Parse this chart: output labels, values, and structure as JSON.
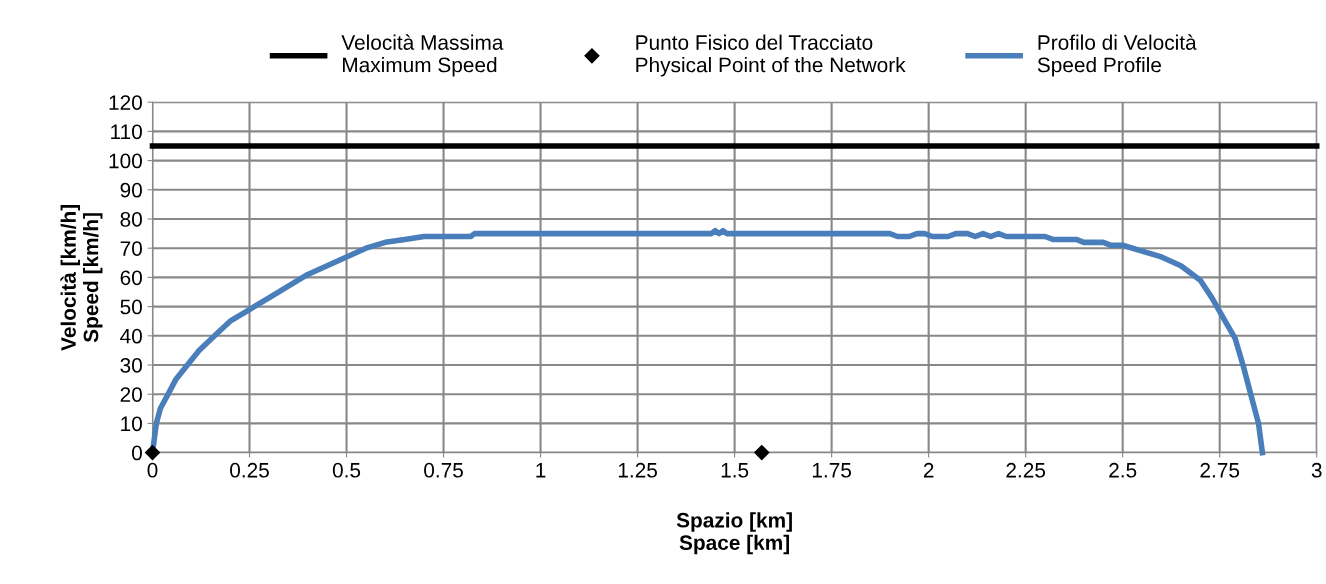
{
  "chart_data": {
    "type": "line",
    "xlabel": "Spazio [km]\nSpace [km]",
    "ylabel": "Velocità [km/h]\nSpeed [km/h]",
    "xlim": [
      0,
      3
    ],
    "xticks": [
      0,
      0.25,
      0.5,
      0.75,
      1,
      1.25,
      1.5,
      1.75,
      2,
      2.25,
      2.5,
      2.75,
      3
    ],
    "ylim": [
      0,
      120
    ],
    "yticks": [
      0,
      10,
      20,
      30,
      40,
      50,
      60,
      70,
      80,
      90,
      100,
      110,
      120
    ],
    "grid": true,
    "legend": "top",
    "series": [
      {
        "name": "Velocità Massima\nMaximum Speed",
        "color": "#000000",
        "marker": "none",
        "x": [
          0,
          3
        ],
        "values": [
          105,
          105
        ]
      },
      {
        "name": "Punto Fisico del Tracciato\nPhysical Point of the Network",
        "color": "#000000",
        "type": "scatter",
        "marker": "diamond",
        "x": [
          0,
          1.57
        ],
        "values": [
          0,
          0
        ]
      },
      {
        "name": "Profilo di Velocità\nSpeed Profile",
        "color": "#4a7ebb",
        "marker": "none",
        "x": [
          0,
          0.005,
          0.01,
          0.02,
          0.04,
          0.06,
          0.09,
          0.12,
          0.16,
          0.2,
          0.25,
          0.3,
          0.35,
          0.4,
          0.45,
          0.5,
          0.55,
          0.6,
          0.65,
          0.7,
          0.82,
          0.83,
          1.44,
          1.45,
          1.46,
          1.47,
          1.48,
          1.9,
          1.92,
          1.95,
          1.97,
          1.99,
          2.01,
          2.05,
          2.07,
          2.1,
          2.12,
          2.14,
          2.16,
          2.18,
          2.2,
          2.3,
          2.32,
          2.38,
          2.4,
          2.45,
          2.47,
          2.5,
          2.55,
          2.6,
          2.65,
          2.7,
          2.73,
          2.76,
          2.79,
          2.81,
          2.83,
          2.85,
          2.86
        ],
        "values": [
          0,
          5,
          10,
          15,
          20,
          25,
          30,
          35,
          40,
          45,
          49,
          53,
          57,
          61,
          64,
          67,
          70,
          72,
          73,
          74,
          74,
          75,
          75,
          76,
          75,
          76,
          75,
          75,
          74,
          74,
          75,
          75,
          74,
          74,
          75,
          75,
          74,
          75,
          74,
          75,
          74,
          74,
          73,
          73,
          72,
          72,
          71,
          71,
          69,
          67,
          64,
          59,
          53,
          46,
          39,
          30,
          20,
          10,
          0
        ]
      }
    ]
  }
}
